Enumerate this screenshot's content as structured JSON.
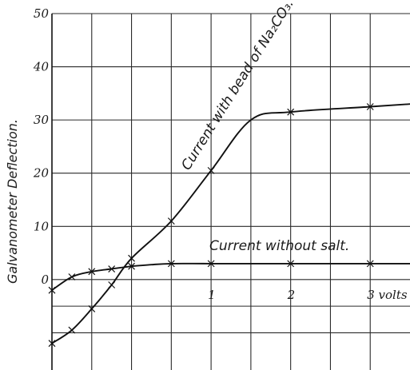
{
  "chart_data": {
    "type": "line",
    "ylabel": "Galvanometer Deflection.",
    "ylim": [
      -17,
      50
    ],
    "xlim": [
      -1,
      3.5
    ],
    "y_ticks": [
      {
        "value": 50,
        "label": "50"
      },
      {
        "value": 40,
        "label": "40"
      },
      {
        "value": 30,
        "label": "30"
      },
      {
        "value": 20,
        "label": "20"
      },
      {
        "value": 10,
        "label": "10"
      },
      {
        "value": 0,
        "label": "0"
      }
    ],
    "x_ticks": [
      {
        "value": 1,
        "label": "1"
      },
      {
        "value": 2,
        "label": "2"
      },
      {
        "value": 3,
        "label": "3 volts"
      }
    ],
    "x_gridlines": [
      -0.5,
      0,
      0.5,
      1,
      1.5,
      2,
      2.5,
      3
    ],
    "grid": true,
    "series": [
      {
        "name": "Current with bead of Na₂CO₃.",
        "x": [
          -1,
          -0.75,
          -0.5,
          -0.25,
          0,
          0.5,
          1,
          1.5,
          2,
          3,
          3.5
        ],
        "y": [
          -12,
          -9.5,
          -5.5,
          -1,
          4,
          11,
          20.5,
          30,
          31.5,
          32.5,
          33
        ],
        "markers_at": [
          -1,
          -0.75,
          -0.5,
          -0.25,
          0,
          0.5,
          1,
          2,
          3
        ]
      },
      {
        "name": "Current without salt.",
        "x": [
          -1,
          -0.75,
          -0.5,
          -0.25,
          0,
          0.25,
          0.5,
          1,
          2,
          3,
          3.5
        ],
        "y": [
          -2,
          0.5,
          1.5,
          2,
          2.5,
          2.8,
          3,
          3,
          3,
          3,
          3
        ],
        "markers_at": [
          -1,
          -0.75,
          -0.5,
          -0.25,
          0,
          0.5,
          1,
          2,
          3
        ]
      }
    ],
    "annotations": [
      {
        "text": "Current with bead of Na₂CO₃.",
        "series": 0
      },
      {
        "text": "Current without salt.",
        "series": 1
      }
    ]
  }
}
